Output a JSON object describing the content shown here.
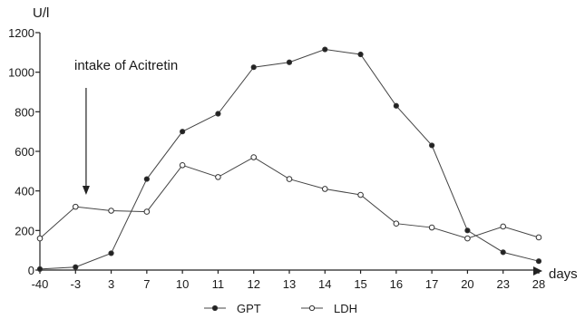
{
  "chart_data": {
    "type": "line",
    "title": "",
    "unit_label": "U/l",
    "xlabel": "days",
    "ylabel": "",
    "categories": [
      "-40",
      "-3",
      "3",
      "7",
      "10",
      "11",
      "12",
      "13",
      "14",
      "15",
      "16",
      "17",
      "20",
      "23",
      "28"
    ],
    "y_ticks": [
      "0",
      "200",
      "400",
      "600",
      "800",
      "1000",
      "1200"
    ],
    "ylim": [
      0,
      1200
    ],
    "series": [
      {
        "name": "GPT",
        "marker": "filled",
        "values": [
          5,
          15,
          85,
          460,
          700,
          790,
          1025,
          1050,
          1115,
          1090,
          830,
          630,
          200,
          90,
          45
        ]
      },
      {
        "name": "LDH",
        "marker": "open",
        "values": [
          160,
          320,
          300,
          295,
          530,
          470,
          570,
          460,
          410,
          380,
          235,
          215,
          160,
          220,
          165
        ]
      }
    ],
    "annotation": {
      "text": "intake of Acitretin",
      "at_category": "3"
    },
    "legend_position": "bottom-center",
    "grid": false
  }
}
